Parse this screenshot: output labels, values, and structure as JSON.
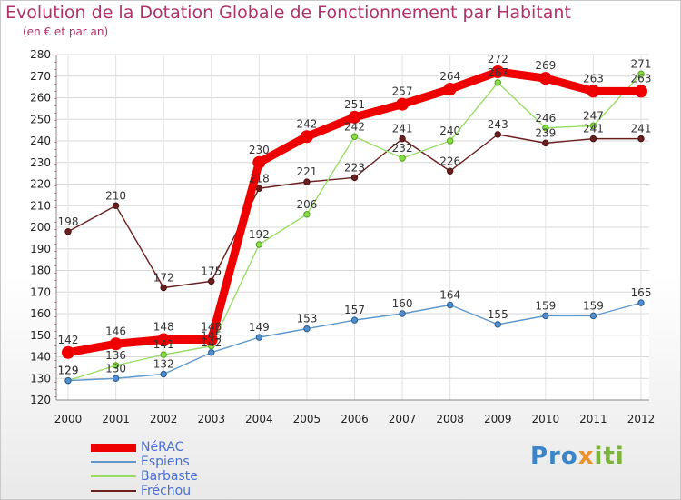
{
  "title": "Evolution de la Dotation Globale de Fonctionnement par Habitant",
  "subtitle": "(en € et par an)",
  "logo": {
    "text": "Proxiti",
    "part1": "Pro",
    "part2": "x",
    "part3": "iti"
  },
  "chart_data": {
    "type": "line",
    "title": "Evolution de la Dotation Globale de Fonctionnement par Habitant",
    "ylabel": "(en € et par an)",
    "xlabel": "",
    "x": [
      "2000",
      "2001",
      "2002",
      "2003",
      "2004",
      "2005",
      "2006",
      "2007",
      "2008",
      "2009",
      "2010",
      "2011",
      "2012"
    ],
    "ylim": [
      120,
      280
    ],
    "yticks": [
      120,
      130,
      140,
      150,
      160,
      170,
      180,
      190,
      200,
      210,
      220,
      230,
      240,
      250,
      260,
      270,
      280
    ],
    "legend_position": "bottom-left",
    "series": [
      {
        "name": "Fréchou",
        "color": "#6b2020",
        "values": [
          198,
          210,
          172,
          175,
          218,
          221,
          223,
          241,
          226,
          243,
          239,
          241,
          241
        ]
      },
      {
        "name": "Barbaste",
        "color": "#99dd66",
        "values": [
          129,
          136,
          141,
          145,
          192,
          206,
          242,
          232,
          240,
          267,
          246,
          247,
          271
        ]
      },
      {
        "name": "Espiens",
        "color": "#5f98cc",
        "values": [
          129,
          130,
          132,
          142,
          149,
          153,
          157,
          160,
          164,
          155,
          159,
          159,
          165
        ]
      },
      {
        "name": "NéRAC",
        "color": "#ee0000",
        "values": [
          142,
          146,
          148,
          148,
          230,
          242,
          251,
          257,
          264,
          272,
          269,
          263,
          263
        ]
      }
    ],
    "legend_order": [
      "NéRAC",
      "Espiens",
      "Barbaste",
      "Fréchou"
    ]
  }
}
